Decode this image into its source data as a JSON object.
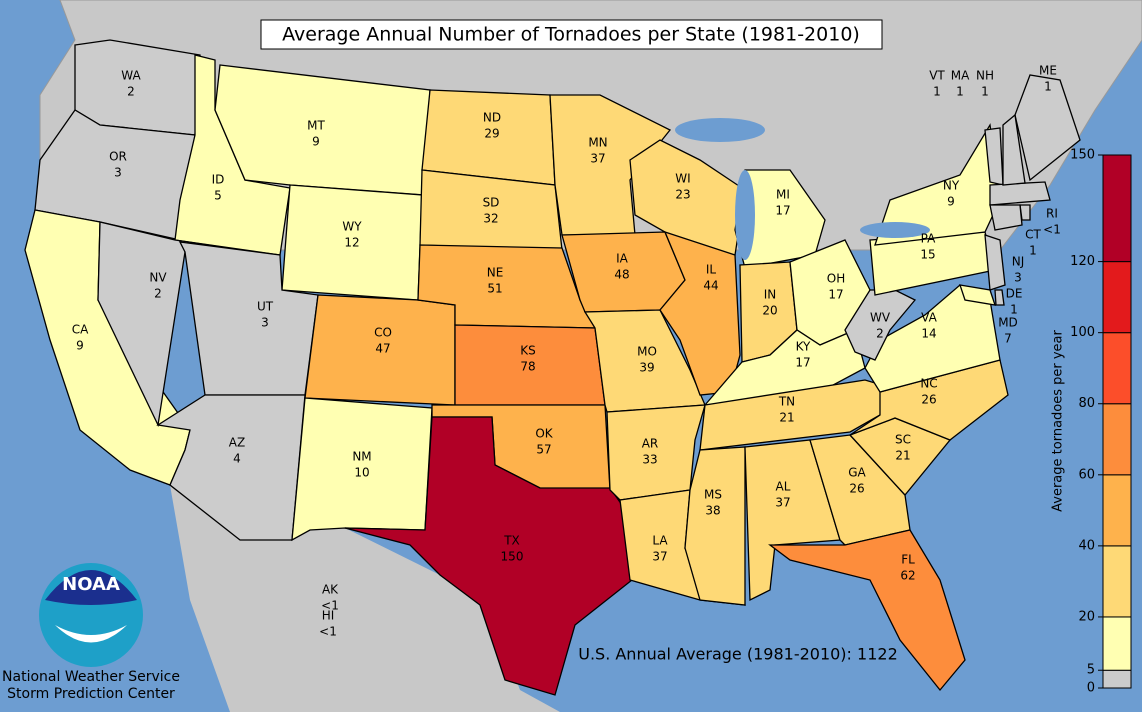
{
  "title": "Average Annual Number of Tornadoes per State (1981-2010)",
  "legend": {
    "label": "Average tornadoes per year",
    "ticks": [
      0,
      5,
      20,
      40,
      60,
      80,
      100,
      120,
      150
    ],
    "colors": [
      "#cccccc",
      "#ffffb2",
      "#fed976",
      "#feb24c",
      "#fd8d3c",
      "#fc4e2a",
      "#e31a1c",
      "#b10026"
    ]
  },
  "states": [
    {
      "abbr": "WA",
      "value": 2
    },
    {
      "abbr": "OR",
      "value": 3
    },
    {
      "abbr": "CA",
      "value": 9
    },
    {
      "abbr": "ID",
      "value": 5
    },
    {
      "abbr": "NV",
      "value": 2
    },
    {
      "abbr": "MT",
      "value": 9
    },
    {
      "abbr": "WY",
      "value": 12
    },
    {
      "abbr": "UT",
      "value": 3
    },
    {
      "abbr": "AZ",
      "value": 4
    },
    {
      "abbr": "CO",
      "value": 47
    },
    {
      "abbr": "NM",
      "value": 10
    },
    {
      "abbr": "ND",
      "value": 29
    },
    {
      "abbr": "SD",
      "value": 32
    },
    {
      "abbr": "NE",
      "value": 51
    },
    {
      "abbr": "KS",
      "value": 78
    },
    {
      "abbr": "OK",
      "value": 57
    },
    {
      "abbr": "TX",
      "value": 150
    },
    {
      "abbr": "MN",
      "value": 37
    },
    {
      "abbr": "IA",
      "value": 48
    },
    {
      "abbr": "MO",
      "value": 39
    },
    {
      "abbr": "WI",
      "value": 23
    },
    {
      "abbr": "IL",
      "value": 44
    },
    {
      "abbr": "MI",
      "value": 17
    },
    {
      "abbr": "IN",
      "value": 20
    },
    {
      "abbr": "OH",
      "value": 17
    },
    {
      "abbr": "KY",
      "value": 17
    },
    {
      "abbr": "TN",
      "value": 21
    },
    {
      "abbr": "AR",
      "value": 33
    },
    {
      "abbr": "LA",
      "value": 37
    },
    {
      "abbr": "MS",
      "value": 38
    },
    {
      "abbr": "AL",
      "value": 37
    },
    {
      "abbr": "GA",
      "value": 26
    },
    {
      "abbr": "SC",
      "value": 21
    },
    {
      "abbr": "NC",
      "value": 26
    },
    {
      "abbr": "VA",
      "value": 14
    },
    {
      "abbr": "WV",
      "value": 2
    },
    {
      "abbr": "PA",
      "value": 15
    },
    {
      "abbr": "NY",
      "value": 9
    },
    {
      "abbr": "FL",
      "value": 62
    },
    {
      "abbr": "ME",
      "value": 1
    },
    {
      "abbr": "VT",
      "value": 1
    },
    {
      "abbr": "MA",
      "value": 1
    },
    {
      "abbr": "NH",
      "value": 1
    },
    {
      "abbr": "RI",
      "value": "<1"
    },
    {
      "abbr": "CT",
      "value": 1
    },
    {
      "abbr": "NJ",
      "value": 3
    },
    {
      "abbr": "DE",
      "value": 1
    },
    {
      "abbr": "MD",
      "value": 7
    },
    {
      "abbr": "AK",
      "value": "<1"
    },
    {
      "abbr": "HI",
      "value": "<1"
    }
  ],
  "annual_average": "U.S. Annual Average (1981-2010): 1122",
  "logo": "NOAA",
  "agency": "National Weather Service",
  "center": "Storm Prediction Center"
}
